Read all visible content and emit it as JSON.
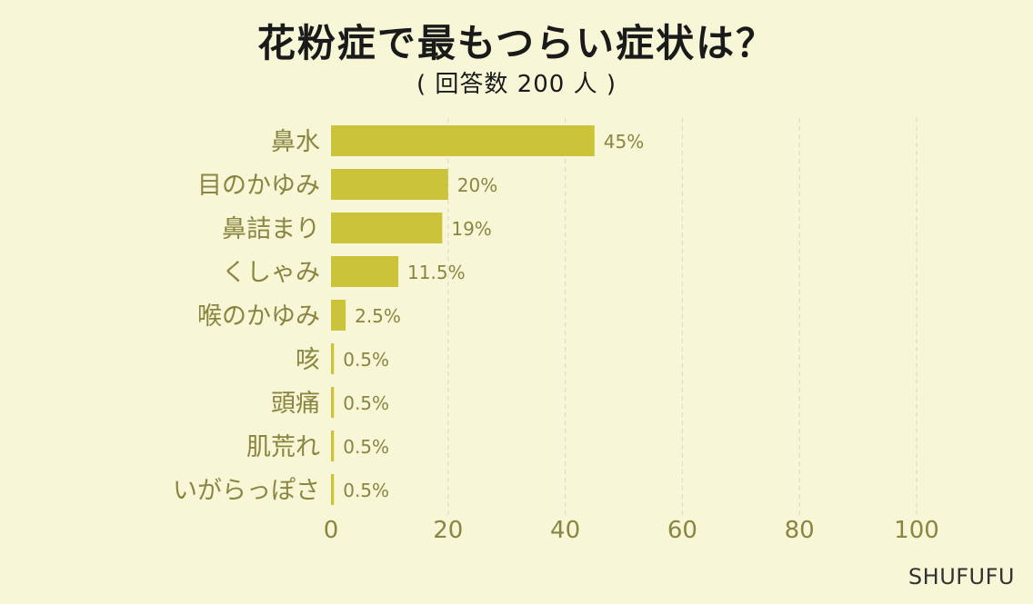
{
  "chart_data": {
    "type": "bar",
    "orientation": "horizontal",
    "title": "花粉症で最もつらい症状は？",
    "subtitle": "( 回答数 200 人 )",
    "categories": [
      "鼻水",
      "目のかゆみ",
      "鼻詰まり",
      "くしゃみ",
      "喉のかゆみ",
      "咳",
      "頭痛",
      "肌荒れ",
      "いがらっぽさ"
    ],
    "values": [
      45,
      20,
      19,
      11.5,
      2.5,
      0.5,
      0.5,
      0.5,
      0.5
    ],
    "value_labels": [
      "45%",
      "20%",
      "19%",
      "11.5%",
      "2.5%",
      "0.5%",
      "0.5%",
      "0.5%",
      "0.5%"
    ],
    "x_ticks": [
      "0",
      "20",
      "40",
      "60",
      "80",
      "100"
    ],
    "xlim": [
      0,
      100
    ],
    "xlabel": "",
    "ylabel": "",
    "grid": true,
    "bar_color": "#cbc43a",
    "label_color": "#8a8540",
    "grid_color": "#d9d8c4"
  },
  "brand": "SHUFUFU",
  "colors": {
    "background": "#f7f6d6",
    "title": "#1a1a1a"
  }
}
